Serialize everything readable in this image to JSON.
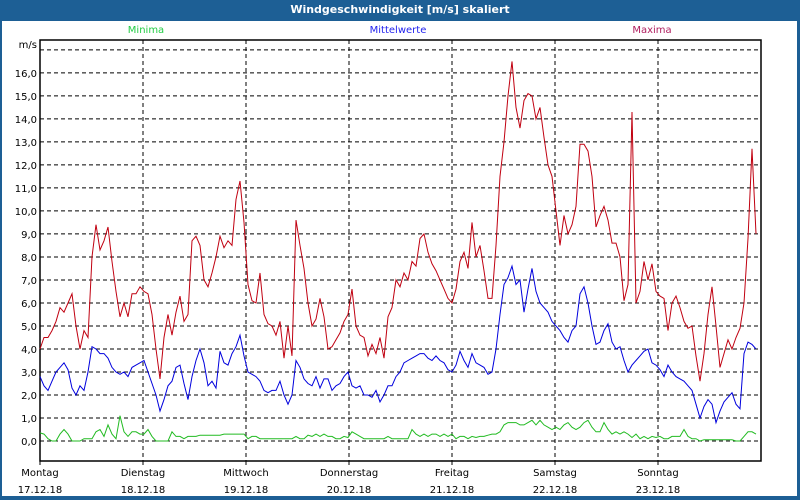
{
  "window": {
    "title": "Windgeschwindigkeit [m/s] skaliert"
  },
  "chart_data": {
    "type": "line",
    "title": "Windgeschwindigkeit [m/s] skaliert",
    "ylabel": "m/s",
    "xlabel": "",
    "ylim": [
      -0.87,
      17.43
    ],
    "xlim_hours": [
      0,
      168
    ],
    "x_step_hours": 0.932,
    "grid": true,
    "legend_placement": "top",
    "yticks": [
      "0,0",
      "1,0",
      "2,0",
      "3,0",
      "4,0",
      "5,0",
      "6,0",
      "7,0",
      "8,0",
      "9,0",
      "10,0",
      "11,0",
      "12,0",
      "13,0",
      "14,0",
      "15,0",
      "16,0"
    ],
    "days": [
      {
        "name": "Montag",
        "date": "17.12.18"
      },
      {
        "name": "Dienstag",
        "date": "18.12.18"
      },
      {
        "name": "Mittwoch",
        "date": "19.12.18"
      },
      {
        "name": "Donnerstag",
        "date": "20.12.18"
      },
      {
        "name": "Freitag",
        "date": "21.12.18"
      },
      {
        "name": "Samstag",
        "date": "22.12.18"
      },
      {
        "name": "Sonntag",
        "date": "23.12.18"
      }
    ],
    "series": [
      {
        "name": "Minima",
        "color": "#22bb22",
        "values": [
          0.35,
          0.3,
          0.1,
          0,
          0,
          0.3,
          0.5,
          0.3,
          0,
          0,
          0,
          0.1,
          0.1,
          0.1,
          0.4,
          0.5,
          0.2,
          0.7,
          0.3,
          0.1,
          1.1,
          0.4,
          0.2,
          0.4,
          0.4,
          0.3,
          0.3,
          0.5,
          0.2,
          0,
          0,
          0,
          0,
          0.4,
          0.2,
          0.2,
          0.1,
          0.2,
          0.2,
          0.2,
          0.25,
          0.25,
          0.25,
          0.25,
          0.25,
          0.25,
          0.3,
          0.3,
          0.3,
          0.3,
          0.3,
          0.3,
          0.1,
          0.2,
          0.2,
          0.1,
          0.1,
          0.1,
          0.1,
          0.1,
          0.1,
          0.1,
          0.1,
          0.1,
          0.2,
          0.1,
          0.1,
          0.25,
          0.2,
          0.3,
          0.2,
          0.3,
          0.2,
          0.2,
          0.1,
          0.1,
          0.2,
          0.15,
          0.4,
          0.3,
          0.2,
          0.1,
          0.1,
          0.1,
          0.1,
          0.1,
          0.1,
          0.2,
          0.1,
          0.1,
          0.1,
          0.1,
          0.1,
          0.5,
          0.3,
          0.2,
          0.3,
          0.2,
          0.3,
          0.3,
          0.2,
          0.3,
          0.2,
          0.3,
          0.1,
          0.2,
          0.2,
          0.1,
          0.2,
          0.15,
          0.2,
          0.2,
          0.25,
          0.3,
          0.3,
          0.4,
          0.7,
          0.8,
          0.8,
          0.8,
          0.7,
          0.7,
          0.8,
          0.9,
          0.7,
          0.9,
          0.7,
          0.6,
          0.5,
          0.6,
          0.5,
          0.7,
          0.8,
          0.6,
          0.5,
          0.6,
          0.8,
          0.9,
          0.6,
          0.4,
          0.4,
          0.8,
          0.5,
          0.3,
          0.4,
          0.3,
          0.4,
          0.3,
          0.15,
          0.3,
          0.1,
          0.2,
          0.1,
          0.2,
          0.15,
          0.2,
          0.1,
          0.1,
          0.2,
          0.2,
          0.2,
          0.5,
          0.2,
          0.1,
          0.1,
          0,
          0.05,
          0.05,
          0.05,
          0.05,
          0.05,
          0.05,
          0.05,
          0.05,
          0,
          0,
          0.2,
          0.4,
          0.4,
          0.3
        ]
      },
      {
        "name": "Mittelwerte",
        "color": "#0000dd",
        "values": [
          2.8,
          2.4,
          2.2,
          2.6,
          3.0,
          3.2,
          3.4,
          3.1,
          2.3,
          2.0,
          2.4,
          2.2,
          3.0,
          4.1,
          4.0,
          3.8,
          3.8,
          3.6,
          3.2,
          3.0,
          2.9,
          3.0,
          2.8,
          3.2,
          3.3,
          3.4,
          3.5,
          3.0,
          2.5,
          2.0,
          1.3,
          1.8,
          2.4,
          2.6,
          3.2,
          3.3,
          2.5,
          1.8,
          2.8,
          3.5,
          4.0,
          3.4,
          2.4,
          2.6,
          2.3,
          3.9,
          3.4,
          3.3,
          3.8,
          4.1,
          4.6,
          3.7,
          3.0,
          2.9,
          2.8,
          2.6,
          2.2,
          2.1,
          2.2,
          2.2,
          2.6,
          2.0,
          1.6,
          2.0,
          3.5,
          3.2,
          2.7,
          2.5,
          2.4,
          2.8,
          2.3,
          2.7,
          2.7,
          2.2,
          2.4,
          2.5,
          2.8,
          3.0,
          2.4,
          2.3,
          2.4,
          2.0,
          2.0,
          1.9,
          2.2,
          1.7,
          2.0,
          2.4,
          2.4,
          2.8,
          3.0,
          3.4,
          3.5,
          3.6,
          3.7,
          3.8,
          3.8,
          3.6,
          3.5,
          3.7,
          3.5,
          3.4,
          3.1,
          3.0,
          3.3,
          3.9,
          3.5,
          3.2,
          3.8,
          3.4,
          3.3,
          3.2,
          2.9,
          3.0,
          4.0,
          5.5,
          6.8,
          7.1,
          7.6,
          6.8,
          7.0,
          5.6,
          6.6,
          7.5,
          6.5,
          6.0,
          5.8,
          5.6,
          5.2,
          5.0,
          4.8,
          4.5,
          4.3,
          4.8,
          5.0,
          6.4,
          6.7,
          6.0,
          5.0,
          4.2,
          4.3,
          4.8,
          5.1,
          4.3,
          4.0,
          4.1,
          3.5,
          3.0,
          3.3,
          3.5,
          3.7,
          3.9,
          4.0,
          3.4,
          3.3,
          3.1,
          2.8,
          3.3,
          3.0,
          2.8,
          2.7,
          2.6,
          2.4,
          2.2,
          1.6,
          1.0,
          1.5,
          1.8,
          1.6,
          0.8,
          1.3,
          1.7,
          1.9,
          2.1,
          1.6,
          1.4,
          3.8,
          4.3,
          4.2,
          4.0
        ]
      },
      {
        "name": "Maxima",
        "color": "#c00010",
        "values": [
          4.0,
          4.5,
          4.5,
          4.8,
          5.2,
          5.8,
          5.6,
          6.0,
          6.4,
          5.0,
          4.0,
          4.8,
          4.5,
          8.0,
          9.4,
          8.3,
          8.7,
          9.3,
          7.8,
          6.5,
          5.4,
          6.0,
          5.4,
          6.4,
          6.4,
          6.7,
          6.5,
          6.4,
          5.5,
          4.0,
          2.7,
          4.5,
          5.5,
          4.6,
          5.6,
          6.3,
          5.2,
          5.5,
          8.7,
          8.9,
          8.5,
          7.0,
          6.7,
          7.3,
          8.0,
          8.9,
          8.4,
          8.7,
          8.5,
          10.5,
          11.3,
          9.5,
          6.8,
          6.1,
          6.0,
          7.3,
          5.5,
          5.1,
          5.0,
          4.6,
          5.2,
          3.6,
          5.0,
          3.7,
          9.6,
          8.5,
          7.5,
          6.0,
          5.0,
          5.3,
          6.2,
          5.4,
          4.0,
          4.1,
          4.4,
          4.7,
          5.2,
          5.5,
          6.6,
          5.0,
          4.6,
          4.5,
          3.7,
          4.2,
          3.8,
          4.5,
          3.6,
          5.4,
          5.8,
          7.0,
          6.7,
          7.3,
          7.0,
          7.8,
          7.6,
          8.8,
          9.0,
          8.2,
          7.7,
          7.4,
          7.0,
          6.6,
          6.2,
          6.0,
          6.6,
          7.8,
          8.2,
          7.5,
          9.5,
          8.0,
          8.5,
          7.4,
          6.2,
          6.2,
          8.5,
          11.5,
          13.0,
          15.0,
          16.5,
          14.5,
          13.6,
          14.8,
          15.1,
          15.0,
          14.0,
          14.5,
          13.2,
          12.0,
          11.5,
          10.0,
          8.5,
          9.8,
          9.0,
          9.4,
          10.2,
          12.9,
          12.9,
          12.6,
          11.5,
          9.3,
          9.8,
          10.2,
          9.6,
          8.6,
          8.6,
          8.0,
          6.1,
          6.8,
          14.3,
          6.0,
          6.5,
          7.8,
          7.0,
          7.7,
          6.5,
          6.3,
          6.2,
          4.8,
          6.0,
          6.3,
          5.8,
          5.2,
          4.9,
          5.0,
          3.7,
          2.6,
          3.8,
          5.5,
          6.7,
          5.0,
          3.2,
          3.8,
          4.4,
          4.0,
          4.5,
          4.9,
          6.0,
          8.8,
          12.7,
          9.0
        ]
      }
    ]
  }
}
